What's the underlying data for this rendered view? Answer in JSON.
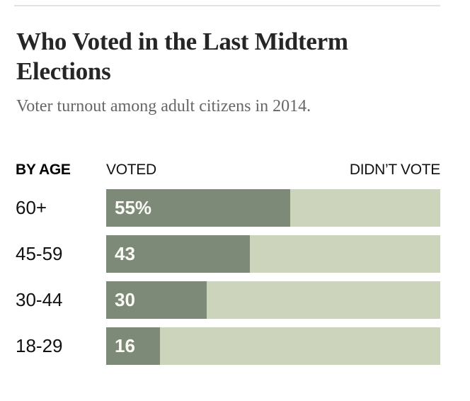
{
  "header": {
    "title": "Who Voted in the Last Midterm Elections",
    "title_lines": [
      "Who Voted in the Last Midterm",
      "Elections"
    ],
    "subtitle": "Voter turnout among adult citizens in 2014."
  },
  "chart_data": {
    "type": "bar",
    "orientation": "horizontal_stacked",
    "title": "Who Voted in the Last Midterm Elections",
    "subtitle": "Voter turnout among adult citizens in 2014.",
    "group_label": "BY AGE",
    "series_labels": {
      "voted": "VOTED",
      "didnt_vote": "DIDN’T VOTE"
    },
    "categories": [
      "60+",
      "45-59",
      "30-44",
      "18-29"
    ],
    "series": [
      {
        "name": "VOTED",
        "values": [
          55,
          43,
          30,
          16
        ]
      },
      {
        "name": "DIDN’T VOTE",
        "values": [
          45,
          57,
          70,
          84
        ]
      }
    ],
    "values": [
      55,
      43,
      30,
      16
    ],
    "value_labels": [
      "55%",
      "43",
      "30",
      "16"
    ],
    "unit": "percent",
    "xlim": [
      0,
      100
    ],
    "legend_position": "above-bars",
    "grid": false,
    "colors": {
      "voted": "#7e8a78",
      "didnt_vote": "#ccd5bc",
      "rule": "#e2e2e2",
      "value_text": "#fbfbf6"
    }
  }
}
